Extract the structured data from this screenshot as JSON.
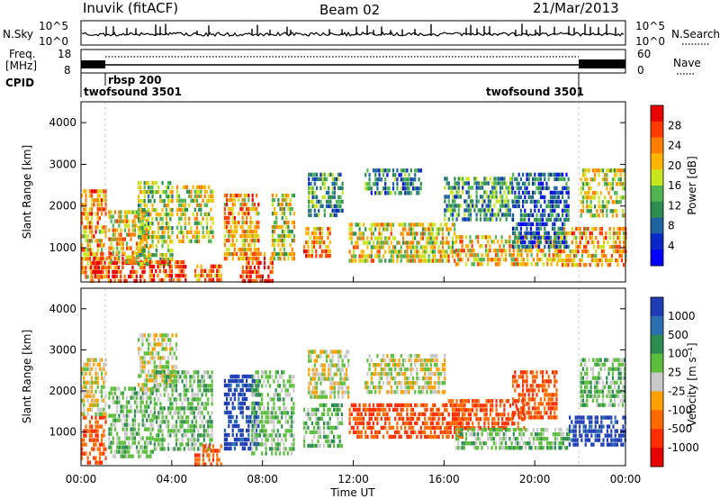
{
  "header": {
    "site": "Inuvik (fitACF)",
    "beam": "Beam 02",
    "date": "21/Mar/2013"
  },
  "panels": {
    "noise": {
      "left_label": "N.Sky",
      "right_label": "N.Search",
      "left_ticks": [
        "10^5",
        "10^0"
      ],
      "right_ticks": [
        "10^5",
        "10^0"
      ]
    },
    "freq": {
      "left_label_1": "Freq.",
      "left_label_2": "[MHz]",
      "right_label": "Nave",
      "left_ticks": [
        "18",
        "8"
      ],
      "right_ticks": [
        "60",
        "0"
      ]
    },
    "cpid": {
      "label": "CPID",
      "segments": [
        "twofsound 3501",
        "rbsp 200",
        "twofsound 3501"
      ]
    }
  },
  "colorbars": {
    "power": {
      "label": "Power [dB]",
      "ticks": [
        "28",
        "24",
        "20",
        "16",
        "12",
        "8",
        "4"
      ],
      "colors": [
        "#e60000",
        "#ff3c00",
        "#ff7d00",
        "#ffb400",
        "#c8e61e",
        "#50b450",
        "#2d8c50",
        "#1e64a0",
        "#0a28c8",
        "#0000ff"
      ]
    },
    "velocity": {
      "label": "Velocity [m s⁻¹]",
      "ticks": [
        "1000",
        "500",
        "100",
        "25",
        "-25",
        "-100",
        "-500",
        "-1000"
      ],
      "colors": [
        "#1e3cb4",
        "#2a70b0",
        "#2d8c50",
        "#5cbe3c",
        "#c8c8c8",
        "#ffa000",
        "#ff6a00",
        "#ff2d00",
        "#e60000"
      ]
    }
  },
  "chart_data": [
    {
      "type": "heatmap",
      "name": "power",
      "ylabel": "Slant Range [km]",
      "ylim": [
        180,
        4500
      ],
      "yticks": [
        1000,
        2000,
        3000,
        4000
      ],
      "xlim": [
        0,
        24
      ],
      "colorbar_range": [
        0,
        30
      ],
      "blobs": [
        {
          "t0": 0.0,
          "t1": 1.1,
          "r0": 300,
          "r1": 2400,
          "v": 22
        },
        {
          "t0": 0.4,
          "t1": 2.8,
          "r0": 200,
          "r1": 900,
          "v": 26
        },
        {
          "t0": 1.2,
          "t1": 3.0,
          "r0": 700,
          "r1": 1900,
          "v": 20
        },
        {
          "t0": 2.5,
          "t1": 4.0,
          "r0": 600,
          "r1": 2600,
          "v": 16
        },
        {
          "t0": 3.0,
          "t1": 4.6,
          "r0": 200,
          "r1": 700,
          "v": 26
        },
        {
          "t0": 4.2,
          "t1": 5.8,
          "r0": 1200,
          "r1": 2500,
          "v": 18
        },
        {
          "t0": 5.0,
          "t1": 6.2,
          "r0": 200,
          "r1": 600,
          "v": 24
        },
        {
          "t0": 6.3,
          "t1": 7.8,
          "r0": 700,
          "r1": 2300,
          "v": 22
        },
        {
          "t0": 7.0,
          "t1": 8.4,
          "r0": 200,
          "r1": 900,
          "v": 27
        },
        {
          "t0": 8.4,
          "t1": 9.4,
          "r0": 700,
          "r1": 2300,
          "v": 18
        },
        {
          "t0": 9.8,
          "t1": 11.0,
          "r0": 800,
          "r1": 1500,
          "v": 22
        },
        {
          "t0": 10.0,
          "t1": 11.5,
          "r0": 1800,
          "r1": 2800,
          "v": 12
        },
        {
          "t0": 11.8,
          "t1": 16.5,
          "r0": 700,
          "r1": 1600,
          "v": 19
        },
        {
          "t0": 12.5,
          "t1": 15.0,
          "r0": 2300,
          "r1": 2900,
          "v": 10
        },
        {
          "t0": 16.0,
          "t1": 19.0,
          "r0": 1700,
          "r1": 2700,
          "v": 12
        },
        {
          "t0": 16.5,
          "t1": 21.0,
          "r0": 600,
          "r1": 1300,
          "v": 20
        },
        {
          "t0": 21.0,
          "t1": 24.0,
          "r0": 600,
          "r1": 1500,
          "v": 22
        },
        {
          "t0": 22.0,
          "t1": 24.0,
          "r0": 1800,
          "r1": 2900,
          "v": 18
        },
        {
          "t0": 19.0,
          "t1": 21.5,
          "r0": 1000,
          "r1": 2800,
          "v": 8
        }
      ]
    },
    {
      "type": "heatmap",
      "name": "velocity",
      "ylabel": "Slant Range [km]",
      "xlabel": "Time UT",
      "ylim": [
        180,
        4500
      ],
      "yticks": [
        1000,
        2000,
        3000,
        4000
      ],
      "xlim": [
        0,
        24
      ],
      "xticks": [
        "00:00",
        "04:00",
        "08:00",
        "12:00",
        "16:00",
        "20:00",
        "00:00"
      ],
      "blobs": [
        {
          "t0": 0.0,
          "t1": 1.1,
          "r0": 300,
          "r1": 1400,
          "v": -300
        },
        {
          "t0": 0.0,
          "t1": 1.1,
          "r0": 1400,
          "r1": 2800,
          "v": 0
        },
        {
          "t0": 1.2,
          "t1": 3.2,
          "r0": 400,
          "r1": 2100,
          "v": 60
        },
        {
          "t0": 2.5,
          "t1": 4.2,
          "r0": 2000,
          "r1": 3400,
          "v": 0
        },
        {
          "t0": 3.2,
          "t1": 5.8,
          "r0": 600,
          "r1": 2500,
          "v": 60
        },
        {
          "t0": 5.0,
          "t1": 6.2,
          "r0": 200,
          "r1": 700,
          "v": -300
        },
        {
          "t0": 6.3,
          "t1": 7.8,
          "r0": 600,
          "r1": 2400,
          "v": 800
        },
        {
          "t0": 7.5,
          "t1": 9.4,
          "r0": 500,
          "r1": 2500,
          "v": 60
        },
        {
          "t0": 9.8,
          "t1": 11.5,
          "r0": 700,
          "r1": 1700,
          "v": 60
        },
        {
          "t0": 10.0,
          "t1": 11.8,
          "r0": 1800,
          "r1": 3000,
          "v": 0
        },
        {
          "t0": 11.8,
          "t1": 16.8,
          "r0": 900,
          "r1": 1700,
          "v": -300
        },
        {
          "t0": 12.5,
          "t1": 16.0,
          "r0": 2000,
          "r1": 2900,
          "v": 0
        },
        {
          "t0": 16.0,
          "t1": 19.5,
          "r0": 1100,
          "r1": 1800,
          "v": -300
        },
        {
          "t0": 16.5,
          "t1": 21.5,
          "r0": 600,
          "r1": 1100,
          "v": 60
        },
        {
          "t0": 21.5,
          "t1": 24.0,
          "r0": 700,
          "r1": 1400,
          "v": 800
        },
        {
          "t0": 22.0,
          "t1": 24.0,
          "r0": 1600,
          "r1": 2800,
          "v": 60
        },
        {
          "t0": 19.0,
          "t1": 21.0,
          "r0": 1300,
          "r1": 2500,
          "v": -300
        }
      ]
    }
  ]
}
